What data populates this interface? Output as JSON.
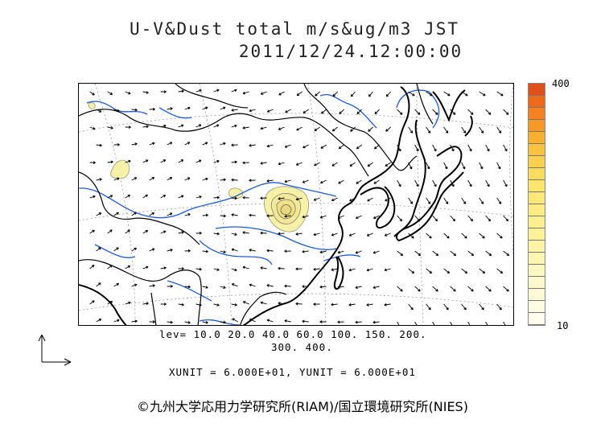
{
  "title_line1": "U-V&Dust total m/s&ug/m3 JST",
  "title_line2": "2011/12/24.12:00:00",
  "colorbar": {
    "max_label": "400",
    "min_label": "10",
    "colors": [
      "#e0501a",
      "#ee6a1a",
      "#f58220",
      "#f79a25",
      "#f9b030",
      "#fac23e",
      "#fbd04e",
      "#fcdc5e",
      "#fde46c",
      "#fde878",
      "#fdeb84",
      "#fdee8e",
      "#fdf199",
      "#fdf4a6",
      "#fdf6b2",
      "#fdf8bf",
      "#fef9cc",
      "#fefad6",
      "#fefce1",
      "#fffdec"
    ]
  },
  "levels_line1": "lev= 10.0 20.0 40.0 60.0 100. 150. 200.",
  "levels_line2": "300. 400.",
  "units_line": "XUNIT = 6.000E+01, YUNIT = 6.000E+01",
  "credit": "©九州大学応用力学研究所(RIAM)/国立環境研究所(NIES)",
  "map_style": {
    "coast_color": "#000000",
    "border_color": "#000000",
    "river_color": "#1f5ad6",
    "grid_color": "#999999",
    "dust_fill": "#f6f0a8",
    "dust_line": "#888866",
    "arrow_color": "#000000"
  }
}
